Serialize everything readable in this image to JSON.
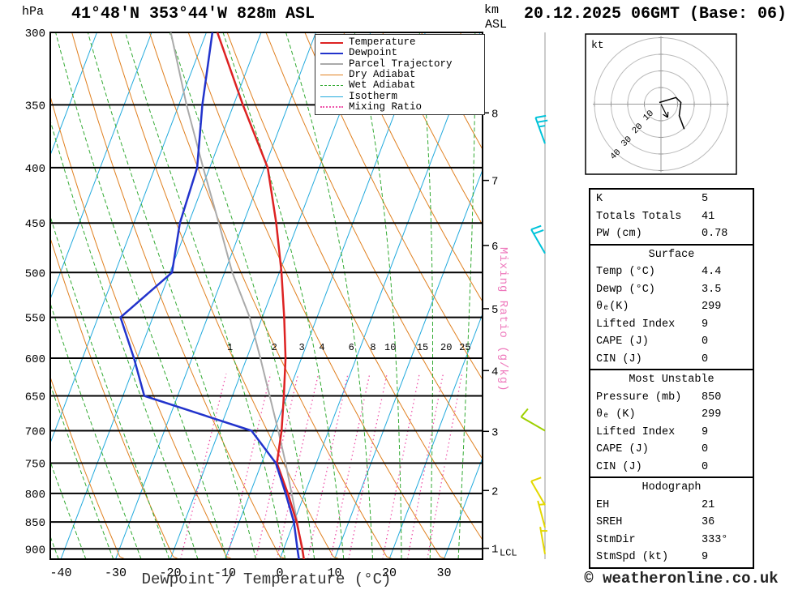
{
  "header": {
    "pressure_unit": "hPa",
    "station_title": "41°48'N 353°44'W 828m ASL",
    "km_label": "km",
    "asl_label": "ASL",
    "date_title": "20.12.2025 06GMT (Base: 06)"
  },
  "footer": {
    "xaxis_label": "Dewpoint / Temperature (°C)",
    "copyright": "© weatheronline.co.uk"
  },
  "legend": {
    "items": [
      {
        "label": "Temperature",
        "color": "#dd2222",
        "style": "solid",
        "weight": 2
      },
      {
        "label": "Dewpoint",
        "color": "#2233cc",
        "style": "solid",
        "weight": 2
      },
      {
        "label": "Parcel Trajectory",
        "color": "#aaaaaa",
        "style": "solid",
        "weight": 2
      },
      {
        "label": "Dry Adiabat",
        "color": "#e08020",
        "style": "solid",
        "weight": 1
      },
      {
        "label": "Wet Adiabat",
        "color": "#33aa33",
        "style": "dashed",
        "weight": 1
      },
      {
        "label": "Isotherm",
        "color": "#22aadd",
        "style": "solid",
        "weight": 1
      },
      {
        "label": "Mixing Ratio",
        "color": "#ee55aa",
        "style": "dotted",
        "weight": 2
      }
    ]
  },
  "chart_data": {
    "type": "skewt-logp-sounding",
    "title": "41°48'N 353°44'W 828m ASL",
    "valid": "20.12.2025 06GMT (Base: 06)",
    "pressure_axis": {
      "unit": "hPa",
      "ticks": [
        300,
        350,
        400,
        450,
        500,
        550,
        600,
        650,
        700,
        750,
        800,
        850,
        900
      ],
      "range": [
        300,
        920
      ]
    },
    "temp_axis": {
      "label": "Dewpoint / Temperature (°C)",
      "unit": "°C",
      "ticks": [
        -40,
        -30,
        -20,
        -10,
        0,
        10,
        20,
        30
      ]
    },
    "km_axis": {
      "unit": "km ASL",
      "ticks": [
        1,
        2,
        3,
        4,
        5,
        6,
        7,
        8
      ],
      "tick_pressures": [
        899,
        795,
        701,
        616,
        540,
        472,
        411,
        356
      ]
    },
    "lcl": {
      "label": "LCL",
      "pressure": 905
    },
    "mixing_ratio_axis_label": "Mixing Ratio (g/kg)",
    "mixing_ratio_lines": [
      1,
      2,
      3,
      4,
      6,
      8,
      10,
      15,
      20,
      25
    ],
    "isotherm_step": 10,
    "dry_adiabat_step": 10,
    "wet_adiabat_step": 5,
    "sounding": {
      "pressure_hPa": [
        920,
        900,
        850,
        800,
        750,
        700,
        650,
        600,
        550,
        500,
        450,
        400,
        350,
        300
      ],
      "temperature_C": [
        4.4,
        3.4,
        0.5,
        -3.1,
        -7.2,
        -8.6,
        -10.6,
        -12.9,
        -16.0,
        -19.6,
        -24.0,
        -29.4,
        -38.3,
        -48.0
      ],
      "dewpoint_C": [
        3.5,
        2.5,
        0.0,
        -3.5,
        -7.4,
        -14.1,
        -36.1,
        -40.6,
        -45.9,
        -39.6,
        -41.6,
        -42.3,
        -45.7,
        -48.9
      ]
    },
    "parcel_trajectory": {
      "pressure_hPa": [
        920,
        900,
        850,
        800,
        750,
        700,
        650,
        600,
        550,
        500,
        450,
        400,
        350,
        300
      ],
      "temperature_C": [
        4.4,
        3.3,
        0.6,
        -2.4,
        -5.6,
        -9.2,
        -13.2,
        -17.5,
        -22.3,
        -28.6,
        -34.5,
        -41.2,
        -48.6,
        -56.5
      ]
    },
    "wind_barbs": [
      {
        "pressure_hPa": 380,
        "speed_kt": 25,
        "dir_deg": 340,
        "color": "#00c3d9"
      },
      {
        "pressure_hPa": 480,
        "speed_kt": 20,
        "dir_deg": 330,
        "color": "#00c3d9"
      },
      {
        "pressure_hPa": 700,
        "speed_kt": 10,
        "dir_deg": 300,
        "color": "#9ed000"
      },
      {
        "pressure_hPa": 820,
        "speed_kt": 10,
        "dir_deg": 330,
        "color": "#e3d800"
      },
      {
        "pressure_hPa": 860,
        "speed_kt": 5,
        "dir_deg": 345,
        "color": "#e3d800"
      },
      {
        "pressure_hPa": 910,
        "speed_kt": 5,
        "dir_deg": 350,
        "color": "#e3d800"
      }
    ],
    "colors": {
      "temperature": "#dd2222",
      "dewpoint": "#2233cc",
      "parcel": "#aaaaaa",
      "dry_adiabat": "#e08020",
      "wet_adiabat": "#33aa33",
      "isotherm": "#22aadd",
      "mixing_ratio": "#ee55aa",
      "pressure_line": "#000000"
    }
  },
  "hodograph": {
    "unit_label": "kt",
    "rings_kt": [
      10,
      20,
      30,
      40
    ],
    "trace_uv_kt": [
      [
        -1,
        1
      ],
      [
        9,
        4
      ],
      [
        12,
        1
      ],
      [
        11,
        -7
      ],
      [
        14,
        -15
      ]
    ],
    "storm_motion": {
      "dir_deg": 333,
      "speed_kt": 9
    }
  },
  "table": {
    "sections": [
      {
        "header": null,
        "rows": [
          [
            "K",
            "5"
          ],
          [
            "Totals Totals",
            "41"
          ],
          [
            "PW (cm)",
            "0.78"
          ]
        ]
      },
      {
        "header": "Surface",
        "rows": [
          [
            "Temp (°C)",
            "4.4"
          ],
          [
            "Dewp (°C)",
            "3.5"
          ],
          [
            "θₑ(K)",
            "299"
          ],
          [
            "Lifted Index",
            "9"
          ],
          [
            "CAPE (J)",
            "0"
          ],
          [
            "CIN (J)",
            "0"
          ]
        ]
      },
      {
        "header": "Most Unstable",
        "rows": [
          [
            "Pressure (mb)",
            "850"
          ],
          [
            "θₑ (K)",
            "299"
          ],
          [
            "Lifted Index",
            "9"
          ],
          [
            "CAPE (J)",
            "0"
          ],
          [
            "CIN (J)",
            "0"
          ]
        ]
      },
      {
        "header": "Hodograph",
        "rows": [
          [
            "EH",
            "21"
          ],
          [
            "SREH",
            "36"
          ],
          [
            "StmDir",
            "333°"
          ],
          [
            "StmSpd (kt)",
            "9"
          ]
        ]
      }
    ]
  }
}
